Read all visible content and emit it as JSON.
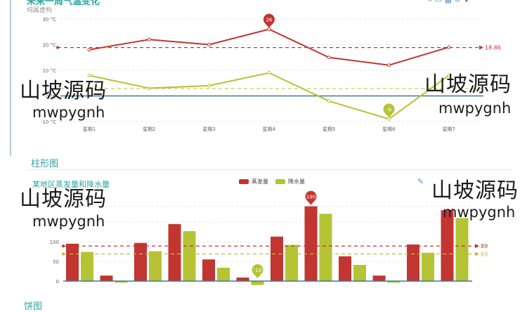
{
  "line_section": {
    "title": "未来一周气温变化",
    "subtitle": "纯属虚构"
  },
  "bar_section": {
    "section_title": "柱形图",
    "chart_title": "某地区蒸发量和降水量",
    "legend": [
      {
        "label": "蒸发量",
        "color": "#c23531"
      },
      {
        "label": "降水量",
        "color": "#b5c334"
      }
    ]
  },
  "bottom_section": {
    "section_title": "饼图"
  },
  "watermarks": [
    {
      "cn": "山坡源码",
      "en": "mwpygnh"
    },
    {
      "cn": "山坡源码",
      "en": "mwpygnh"
    },
    {
      "cn": "山坡源码",
      "en": "mwpygnh"
    },
    {
      "cn": "山坡源码",
      "en": "mwpygnh"
    }
  ],
  "chart_data": [
    {
      "type": "line",
      "title": "未来一周气温变化",
      "subtitle": "纯属虚构",
      "categories": [
        "星期1",
        "星期2",
        "星期3",
        "星期4",
        "星期5",
        "星期6",
        "星期7"
      ],
      "y_ticks": [
        "-10 °C",
        "0 °C",
        "10 °C",
        "20 °C",
        "30 °C"
      ],
      "ylim": [
        -10,
        30
      ],
      "series": [
        {
          "color": "#c23531",
          "values": [
            18,
            22,
            20,
            26,
            15,
            12,
            19
          ],
          "max_label": "26",
          "average": 18.86,
          "average_label": "18.86"
        },
        {
          "color": "#b5c334",
          "values": [
            8,
            3,
            4,
            9,
            -2,
            -9,
            8
          ],
          "min_label": "-9"
        }
      ]
    },
    {
      "type": "bar",
      "title": "某地区蒸发量和降水量",
      "y_ticks": [
        "0",
        "50",
        "100"
      ],
      "ylim": [
        -5,
        190
      ],
      "categories": [
        "1",
        "2",
        "3",
        "4",
        "5",
        "6",
        "7",
        "8",
        "9",
        "10",
        "11",
        "12"
      ],
      "series": [
        {
          "name": "蒸发量",
          "color": "#c23531",
          "values": [
            95,
            14,
            97,
            145,
            55,
            9,
            113,
            190,
            63,
            14,
            93,
            180
          ],
          "max_label": "190",
          "average": 89,
          "average_label": "89"
        },
        {
          "name": "降水量",
          "color": "#b5c334",
          "values": [
            74,
            -4,
            76,
            127,
            34,
            -10,
            92,
            171,
            41,
            -4,
            72,
            160
          ],
          "min_label": "-10",
          "average": 69,
          "average_label": "69"
        }
      ]
    }
  ]
}
